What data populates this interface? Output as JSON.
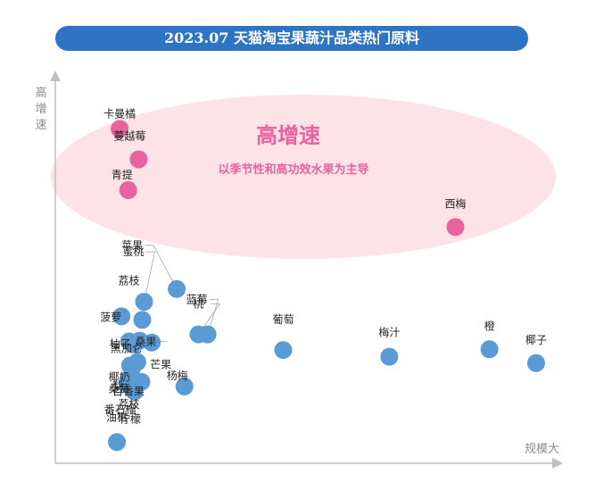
{
  "title": "2023.07 天猫淘宝果蔬汁品类热门原料",
  "colors": {
    "title_bg": "#2e74c4",
    "bubble_blue": "#5b9bd5",
    "bubble_pink": "#e8639e",
    "highlight_ellipse": "#fde3e8",
    "highlight_text": "#e8639e",
    "axis": "#bfbfbf",
    "axis_label": "#8c8c8c"
  },
  "chart_data": {
    "type": "scatter",
    "title": "2023.07 天猫淘宝果蔬汁品类热门原料",
    "xlabel": "规模大",
    "ylabel": "高增速",
    "axis_ticks": false,
    "grid": false,
    "legend": "none",
    "x_range": [
      0,
      100
    ],
    "y_range": [
      0,
      100
    ],
    "highlight": {
      "title": "高增速",
      "subtitle": "以季节性和高功效水果为主导"
    },
    "points": [
      {
        "label": "卡曼橘",
        "x": 7.3,
        "y": 91.6,
        "group": "high_growth"
      },
      {
        "label": "蔓越莓",
        "x": 11.5,
        "y": 83.0,
        "group": "high_growth"
      },
      {
        "label": "青提",
        "x": 9.2,
        "y": 74.3,
        "group": "high_growth"
      },
      {
        "label": "西梅",
        "x": 81.4,
        "y": 63.9,
        "group": "high_growth"
      },
      {
        "label": "苹果",
        "x": 19.9,
        "y": 46.4,
        "group": "other"
      },
      {
        "label": "蜜桃",
        "x": 12.7,
        "y": 42.8,
        "group": "other"
      },
      {
        "label": "荔枝",
        "x": 12.3,
        "y": 37.7,
        "group": "other"
      },
      {
        "label": "桃",
        "x": 24.7,
        "y": 33.6,
        "group": "other"
      },
      {
        "label": "蓝莓",
        "x": 26.7,
        "y": 33.6,
        "group": "other"
      },
      {
        "label": "菠萝",
        "x": 7.7,
        "y": 38.7,
        "group": "other"
      },
      {
        "label": "桑果",
        "x": 11.7,
        "y": 31.8,
        "group": "other"
      },
      {
        "label": "柚子",
        "x": 9.4,
        "y": 31.6,
        "group": "other"
      },
      {
        "label": "芒果",
        "x": 14.4,
        "y": 31.3,
        "group": "other"
      },
      {
        "label": "黑加仑",
        "x": 10.4,
        "y": 30.8,
        "group": "other"
      },
      {
        "label": "百香果",
        "x": 11.2,
        "y": 25.8,
        "group": "other"
      },
      {
        "label": "葡萄",
        "x": 43.4,
        "y": 29.2,
        "group": "other"
      },
      {
        "label": "梅汁",
        "x": 66.8,
        "y": 27.3,
        "group": "other"
      },
      {
        "label": "橙",
        "x": 88.9,
        "y": 29.4,
        "group": "other"
      },
      {
        "label": "椰子",
        "x": 99.2,
        "y": 25.5,
        "group": "other"
      },
      {
        "label": "椰奶",
        "x": 9.6,
        "y": 24.8,
        "group": "other"
      },
      {
        "label": "桑葚",
        "x": 10.0,
        "y": 24.0,
        "group": "other"
      },
      {
        "label": "番石榴",
        "x": 9.0,
        "y": 19.9,
        "group": "other"
      },
      {
        "label": "柠檬",
        "x": 10.6,
        "y": 17.5,
        "group": "other"
      },
      {
        "label": "梨",
        "x": 9.4,
        "y": 21.0,
        "group": "other"
      },
      {
        "label": "荔枝",
        "x": 12.1,
        "y": 20.2,
        "group": "other"
      },
      {
        "label": "杨梅",
        "x": 21.6,
        "y": 18.9,
        "group": "other"
      },
      {
        "label": "油柑",
        "x": 6.7,
        "y": 3.2,
        "group": "other"
      }
    ]
  }
}
